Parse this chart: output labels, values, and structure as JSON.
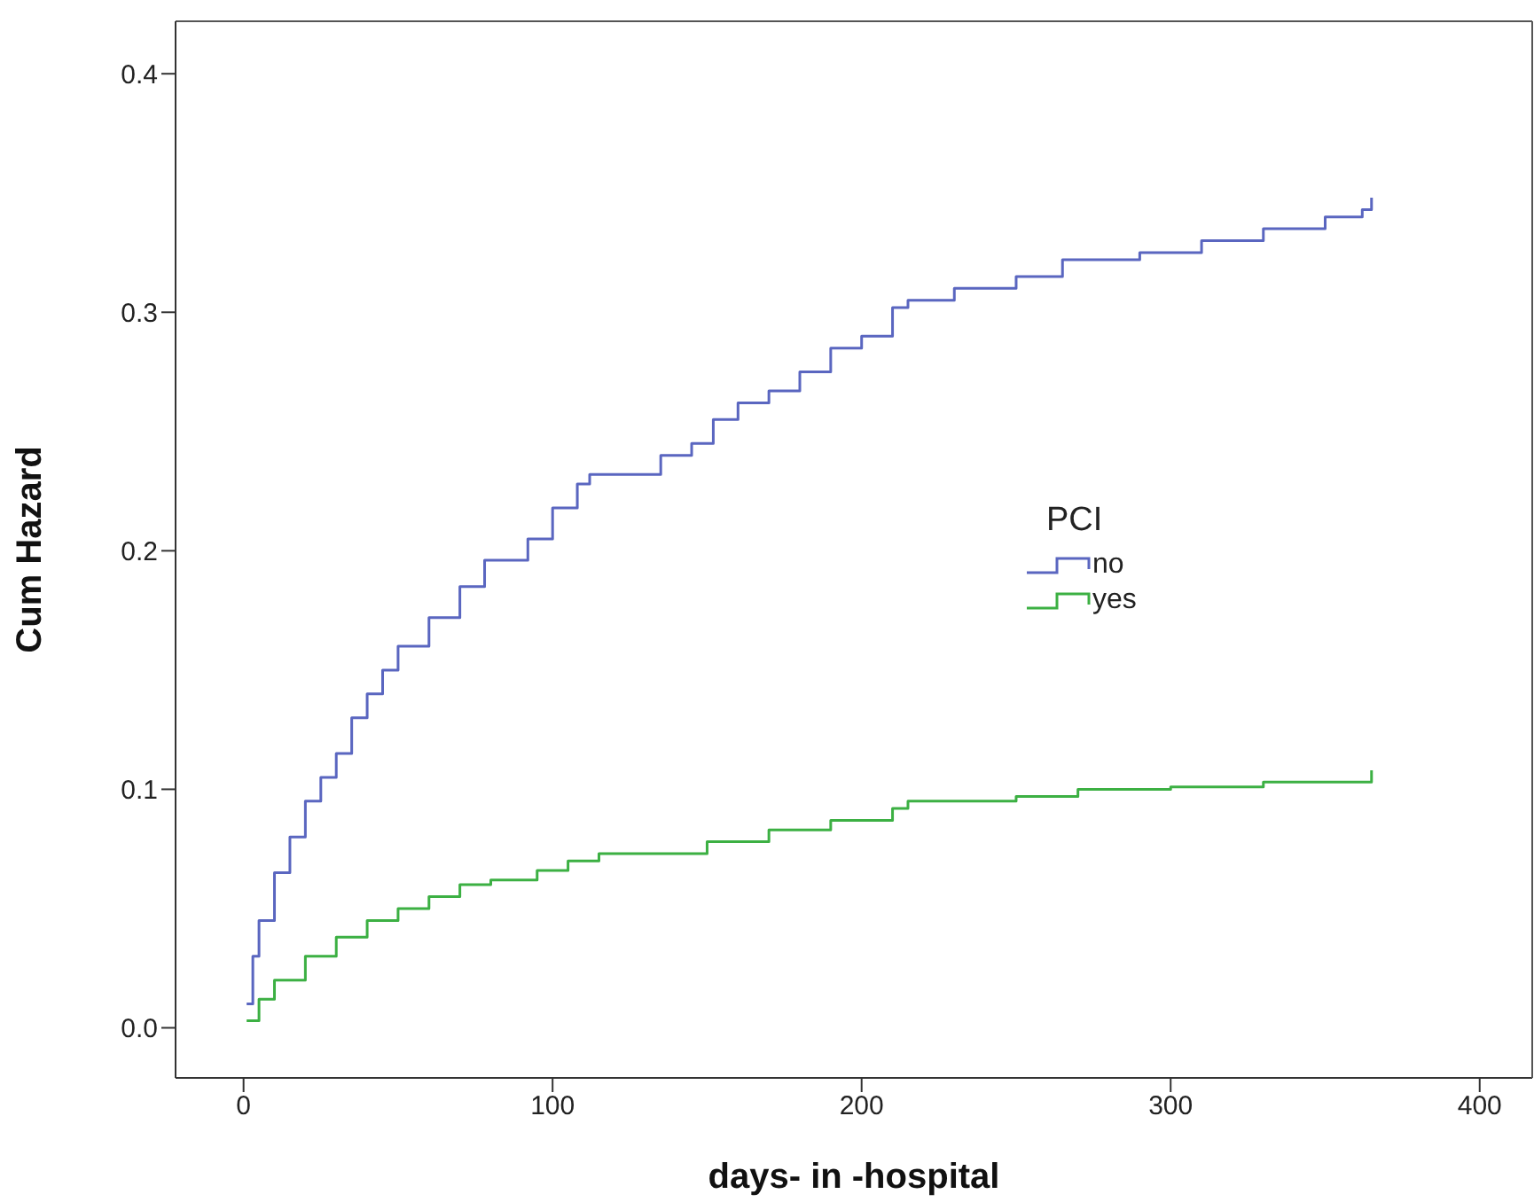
{
  "chart_data": {
    "type": "step",
    "xlabel": "days- in -hospital",
    "ylabel": "Cum Hazard",
    "legend_title": "PCI",
    "legend": "right",
    "xlim": [
      -22,
      417
    ],
    "xticks": [
      0,
      100,
      200,
      300,
      400
    ],
    "ylim": [
      -0.021,
      0.422
    ],
    "yticks": [
      {
        "value": 0,
        "label": "0.0"
      },
      0.1,
      0.2,
      0.3,
      0.4
    ],
    "series": [
      {
        "name": "no",
        "color": "#5a66c0",
        "x": [
          1,
          3,
          5,
          10,
          15,
          20,
          25,
          30,
          35,
          40,
          45,
          50,
          60,
          70,
          78,
          88,
          92,
          100,
          108,
          112,
          125,
          135,
          145,
          152,
          160,
          170,
          180,
          190,
          200,
          210,
          215,
          230,
          250,
          265,
          290,
          310,
          330,
          350,
          362,
          365
        ],
        "values": [
          0.01,
          0.03,
          0.045,
          0.065,
          0.08,
          0.095,
          0.105,
          0.115,
          0.13,
          0.14,
          0.15,
          0.16,
          0.172,
          0.185,
          0.196,
          0.196,
          0.205,
          0.218,
          0.228,
          0.232,
          0.232,
          0.24,
          0.245,
          0.255,
          0.262,
          0.267,
          0.275,
          0.285,
          0.29,
          0.302,
          0.305,
          0.31,
          0.315,
          0.322,
          0.325,
          0.33,
          0.335,
          0.34,
          0.343,
          0.348
        ]
      },
      {
        "name": "yes",
        "color": "#3cb043",
        "x": [
          1,
          5,
          10,
          20,
          30,
          40,
          50,
          60,
          70,
          80,
          88,
          95,
          105,
          115,
          130,
          150,
          170,
          190,
          210,
          215,
          250,
          270,
          300,
          330,
          365
        ],
        "values": [
          0.003,
          0.012,
          0.02,
          0.03,
          0.038,
          0.045,
          0.05,
          0.055,
          0.06,
          0.062,
          0.062,
          0.066,
          0.07,
          0.073,
          0.073,
          0.078,
          0.083,
          0.087,
          0.092,
          0.095,
          0.097,
          0.1,
          0.101,
          0.103,
          0.108
        ]
      }
    ]
  }
}
